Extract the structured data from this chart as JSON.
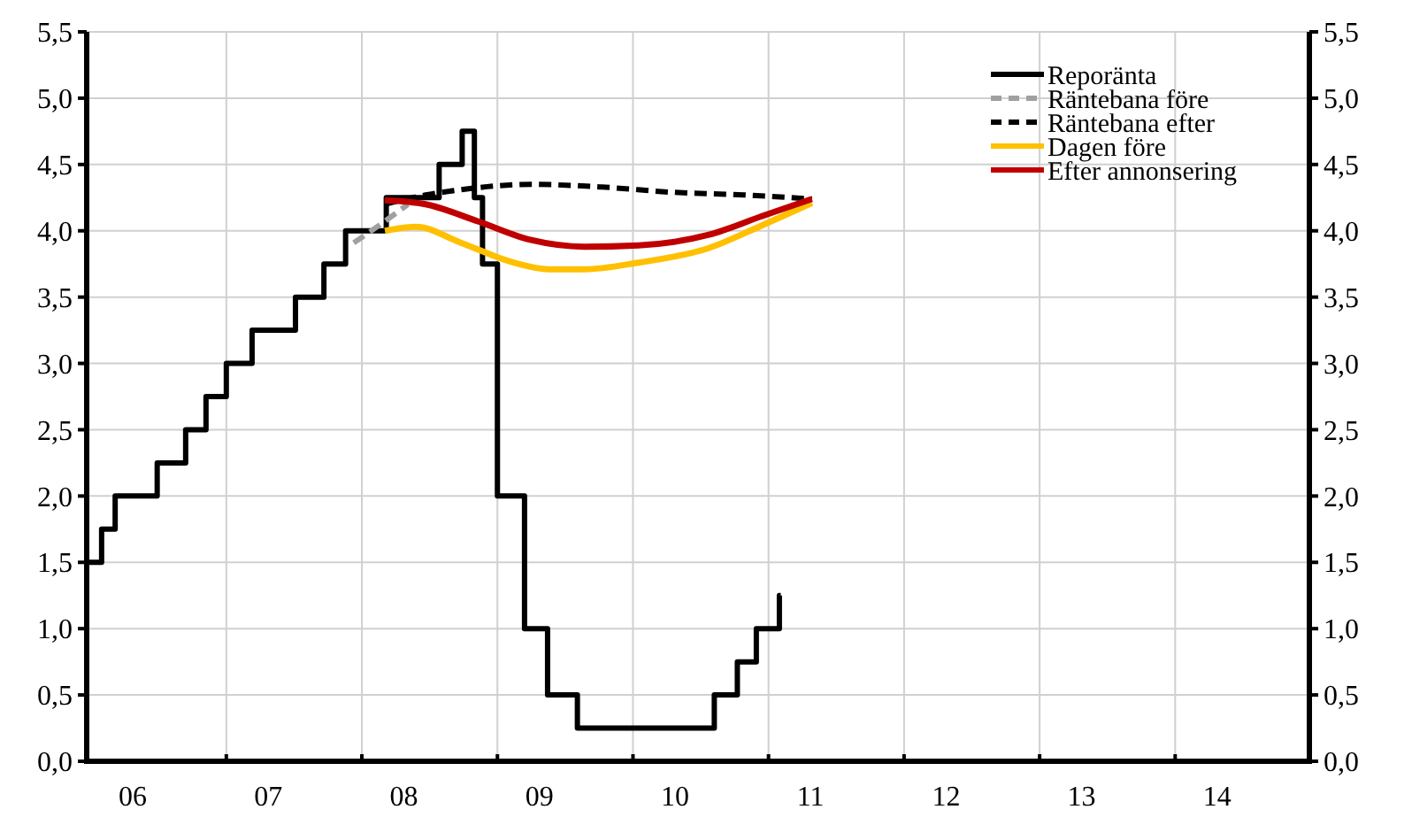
{
  "chart_data": {
    "type": "line",
    "xlim": [
      2005.66,
      2014.68
    ],
    "ylim": [
      0,
      5.5
    ],
    "y2lim": [
      0,
      5.5
    ],
    "xticks": [
      {
        "value": 2006,
        "label": "06"
      },
      {
        "value": 2007,
        "label": "07"
      },
      {
        "value": 2008,
        "label": "08"
      },
      {
        "value": 2009,
        "label": "09"
      },
      {
        "value": 2010,
        "label": "10"
      },
      {
        "value": 2011,
        "label": "11"
      },
      {
        "value": 2012,
        "label": "12"
      },
      {
        "value": 2013,
        "label": "13"
      },
      {
        "value": 2014,
        "label": "14"
      },
      {
        "value": 2006.69,
        "label": null
      },
      {
        "value": 2007.69,
        "label": null
      },
      {
        "value": 2008.69,
        "label": null
      },
      {
        "value": 2009.69,
        "label": null
      },
      {
        "value": 2010.69,
        "label": null
      },
      {
        "value": 2011.69,
        "label": null
      },
      {
        "value": 2012.69,
        "label": null
      },
      {
        "value": 2013.69,
        "label": null
      }
    ],
    "yticks": [
      {
        "value": 0,
        "label": "0,0"
      },
      {
        "value": 0.5,
        "label": "0,5"
      },
      {
        "value": 1,
        "label": "1,0"
      },
      {
        "value": 1.5,
        "label": "1,5"
      },
      {
        "value": 2,
        "label": "2,0"
      },
      {
        "value": 2.5,
        "label": "2,5"
      },
      {
        "value": 3,
        "label": "3,0"
      },
      {
        "value": 3.5,
        "label": "3,5"
      },
      {
        "value": 4,
        "label": "4,0"
      },
      {
        "value": 4.5,
        "label": "4,5"
      },
      {
        "value": 5,
        "label": "5,0"
      },
      {
        "value": 5.5,
        "label": "5,5"
      }
    ],
    "y2ticks": [
      {
        "value": 0,
        "label": "0,0"
      },
      {
        "value": 0.5,
        "label": "0,5"
      },
      {
        "value": 1,
        "label": "1,0"
      },
      {
        "value": 1.5,
        "label": "1,5"
      },
      {
        "value": 2,
        "label": "2,0"
      },
      {
        "value": 2.5,
        "label": "2,5"
      },
      {
        "value": 3,
        "label": "3,0"
      },
      {
        "value": 3.5,
        "label": "3,5"
      },
      {
        "value": 4,
        "label": "4,0"
      },
      {
        "value": 4.5,
        "label": "4,5"
      },
      {
        "value": 5,
        "label": "5,0"
      },
      {
        "value": 5.5,
        "label": "5,5"
      }
    ],
    "grid": true,
    "legend": "top right",
    "series": [
      {
        "name": "Reporänta",
        "type": "step",
        "color": "#000000",
        "line_style": "solid",
        "x": [
          2005.67,
          2005.77,
          2005.87,
          2006.18,
          2006.39,
          2006.54,
          2006.69,
          2006.88,
          2007.2,
          2007.41,
          2007.57,
          2007.87,
          2008.26,
          2008.43,
          2008.52,
          2008.58,
          2008.69,
          2008.89,
          2009.06,
          2009.28,
          2010.29,
          2010.46,
          2010.6,
          2010.77,
          2010.78
        ],
        "values": [
          1.5,
          1.75,
          2,
          2.25,
          2.5,
          2.75,
          3,
          3.25,
          3.5,
          3.75,
          4,
          4.25,
          4.5,
          4.75,
          4.25,
          3.75,
          2,
          1,
          0.5,
          0.25,
          0.5,
          0.75,
          1,
          1.25,
          1.25
        ]
      },
      {
        "name": "Räntebana före",
        "color": "#a0a0a0",
        "line_style": "dashed",
        "x": [
          2007.63,
          2007.83,
          2008.03
        ],
        "values": [
          3.91,
          4.05,
          4.2
        ]
      },
      {
        "name": "Räntebana efter",
        "color": "#000000",
        "line_style": "dashed",
        "x": [
          2007.86,
          2008.16,
          2008.42,
          2008.94,
          2009.46,
          2009.99,
          2010.51,
          2011.01
        ],
        "values": [
          4.2,
          4.27,
          4.31,
          4.35,
          4.33,
          4.29,
          4.27,
          4.24
        ]
      },
      {
        "name": "Dagen före",
        "color": "#ffc000",
        "line_style": "solid",
        "x": [
          2007.86,
          2008.09,
          2008.42,
          2008.81,
          2009.07,
          2009.33,
          2009.73,
          2010.25,
          2010.64,
          2011.01
        ],
        "values": [
          4.0,
          4.03,
          3.91,
          3.76,
          3.71,
          3.71,
          3.76,
          3.87,
          4.04,
          4.21
        ]
      },
      {
        "name": "Efter annonsering",
        "color": "#c00000",
        "line_style": "solid",
        "x": [
          2007.86,
          2008.16,
          2008.55,
          2008.94,
          2009.33,
          2009.73,
          2010.25,
          2010.64,
          2011.01
        ],
        "values": [
          4.23,
          4.2,
          4.07,
          3.93,
          3.88,
          3.89,
          3.97,
          4.11,
          4.24
        ]
      }
    ]
  }
}
